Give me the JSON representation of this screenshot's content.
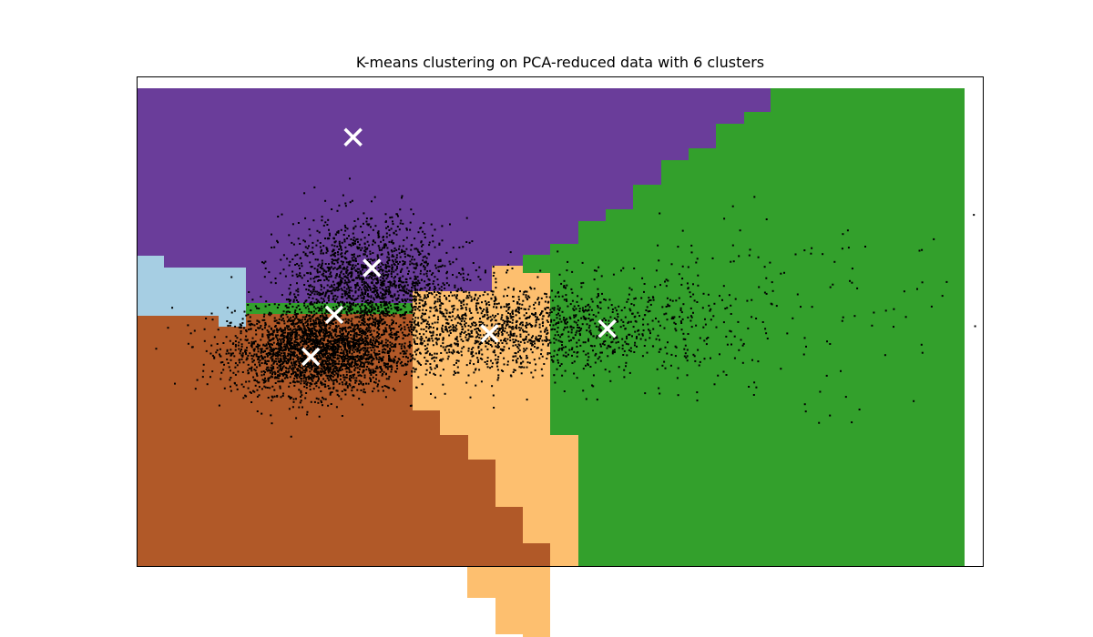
{
  "chart_data": {
    "type": "scatter",
    "title": "K-means clustering on PCA-reduced data with 6 clusters",
    "xlabel": "",
    "ylabel": "",
    "xticks": [],
    "yticks": [],
    "xlim": [
      -3.0,
      15.0
    ],
    "ylim": [
      -6.0,
      4.5
    ],
    "grid": false,
    "legend": "none",
    "n_clusters": 6,
    "region_colors": {
      "lightblue": "#a6cee3",
      "orange": "#fdbf6f",
      "brown": "#b15928",
      "purple": "#6a3d9a",
      "green": "#33a02c"
    },
    "point_color": "#000000",
    "centroid_color": "#ffffff",
    "centroids": [
      {
        "x": 0.7,
        "y": -1.5
      },
      {
        "x": 1.2,
        "y": -0.6
      },
      {
        "x": 2.0,
        "y": 0.4
      },
      {
        "x": 4.5,
        "y": -1.0
      },
      {
        "x": 7.0,
        "y": -0.9
      },
      {
        "x": 1.6,
        "y": 3.2
      }
    ],
    "point_clusters": [
      {
        "cx": 0.8,
        "cy": -1.4,
        "sx": 0.9,
        "sy": 0.45,
        "n": 2600
      },
      {
        "cx": 1.9,
        "cy": 0.0,
        "sx": 0.9,
        "sy": 0.7,
        "n": 1800
      },
      {
        "cx": 4.5,
        "cy": -0.9,
        "sx": 1.2,
        "sy": 0.5,
        "n": 1100
      },
      {
        "cx": 7.0,
        "cy": -0.9,
        "sx": 1.3,
        "sy": 0.55,
        "n": 500
      },
      {
        "cx": 9.0,
        "cy": -0.5,
        "sx": 2.6,
        "sy": 1.0,
        "n": 160
      }
    ],
    "boundary_steps": {
      "x_edges": [
        -3.0,
        -2.4,
        -1.2,
        -0.6,
        0.0,
        0.6,
        1.2,
        1.8,
        2.4,
        3.0,
        3.6,
        4.2,
        4.8,
        5.4,
        6.0,
        6.6,
        7.2,
        7.8,
        8.4,
        9.0,
        9.6,
        10.2,
        10.8,
        11.4,
        12.0,
        12.6,
        13.2,
        13.8,
        14.6
      ],
      "purple_green": [
        [
          6.0,
          2.0
        ],
        [
          6.6,
          2.5
        ],
        [
          7.2,
          3.0
        ],
        [
          7.8,
          3.3
        ],
        [
          8.4,
          3.8
        ],
        [
          9.0,
          4.0
        ],
        [
          9.6,
          4.25
        ],
        [
          10.2,
          4.5
        ]
      ],
      "note_hidden": ""
    }
  }
}
